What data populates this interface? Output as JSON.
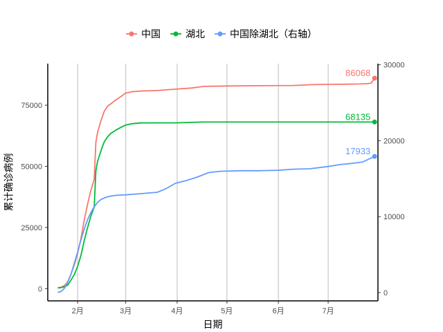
{
  "chart_data": {
    "type": "line",
    "xlabel": "日期",
    "ylabel": "累计确诊病例",
    "x_ticks": [
      {
        "date": "2020-02-01",
        "label": "2月"
      },
      {
        "date": "2020-03-01",
        "label": "3月"
      },
      {
        "date": "2020-04-01",
        "label": "4月"
      },
      {
        "date": "2020-05-01",
        "label": "5月"
      },
      {
        "date": "2020-06-01",
        "label": "6月"
      },
      {
        "date": "2020-07-01",
        "label": "7月"
      }
    ],
    "xlim": [
      "2020-01-14",
      "2020-07-31"
    ],
    "ylim_left": [
      -5000,
      92000
    ],
    "ylim_right": [
      -1100,
      30150
    ],
    "yticks_left": [
      0,
      25000,
      50000,
      75000
    ],
    "yticks_right": [
      0,
      10000,
      20000,
      30000
    ],
    "grid": "vertical",
    "legend_position": "top",
    "series": [
      {
        "name": "中国",
        "axis": "left",
        "color": "#F8766D",
        "end_label": "86068",
        "points": [
          [
            "2020-01-20",
            291
          ],
          [
            "2020-01-22",
            571
          ],
          [
            "2020-01-24",
            1287
          ],
          [
            "2020-01-26",
            2744
          ],
          [
            "2020-01-28",
            5974
          ],
          [
            "2020-01-30",
            9692
          ],
          [
            "2020-02-01",
            14380
          ],
          [
            "2020-02-03",
            20438
          ],
          [
            "2020-02-05",
            28018
          ],
          [
            "2020-02-07",
            34546
          ],
          [
            "2020-02-09",
            40171
          ],
          [
            "2020-02-11",
            44653
          ],
          [
            "2020-02-12",
            59804
          ],
          [
            "2020-02-13",
            63851
          ],
          [
            "2020-02-15",
            68500
          ],
          [
            "2020-02-17",
            72436
          ],
          [
            "2020-02-19",
            74576
          ],
          [
            "2020-02-21",
            75567
          ],
          [
            "2020-02-24",
            77150
          ],
          [
            "2020-02-27",
            78497
          ],
          [
            "2020-03-01",
            79968
          ],
          [
            "2020-03-05",
            80552
          ],
          [
            "2020-03-10",
            80778
          ],
          [
            "2020-03-20",
            81008
          ],
          [
            "2020-03-31",
            81554
          ],
          [
            "2020-04-10",
            82052
          ],
          [
            "2020-04-17",
            82692
          ],
          [
            "2020-05-01",
            82874
          ],
          [
            "2020-05-20",
            82965
          ],
          [
            "2020-06-10",
            83057
          ],
          [
            "2020-06-20",
            83378
          ],
          [
            "2020-07-01",
            83537
          ],
          [
            "2020-07-10",
            83585
          ],
          [
            "2020-07-20",
            83693
          ],
          [
            "2020-07-25",
            83830
          ],
          [
            "2020-07-27",
            84060
          ],
          [
            "2020-07-29",
            86068
          ]
        ]
      },
      {
        "name": "湖北",
        "axis": "left",
        "color": "#00BA38",
        "end_label": "68135",
        "points": [
          [
            "2020-01-20",
            270
          ],
          [
            "2020-01-22",
            444
          ],
          [
            "2020-01-24",
            729
          ],
          [
            "2020-01-26",
            1423
          ],
          [
            "2020-01-28",
            3554
          ],
          [
            "2020-01-30",
            5806
          ],
          [
            "2020-02-01",
            9074
          ],
          [
            "2020-02-03",
            13522
          ],
          [
            "2020-02-05",
            19665
          ],
          [
            "2020-02-07",
            24953
          ],
          [
            "2020-02-09",
            29631
          ],
          [
            "2020-02-11",
            33366
          ],
          [
            "2020-02-12",
            48206
          ],
          [
            "2020-02-13",
            51986
          ],
          [
            "2020-02-15",
            56249
          ],
          [
            "2020-02-17",
            59989
          ],
          [
            "2020-02-19",
            62031
          ],
          [
            "2020-02-21",
            63454
          ],
          [
            "2020-02-24",
            64786
          ],
          [
            "2020-02-27",
            65914
          ],
          [
            "2020-03-01",
            66907
          ],
          [
            "2020-03-05",
            67466
          ],
          [
            "2020-03-10",
            67760
          ],
          [
            "2020-03-20",
            67800
          ],
          [
            "2020-03-31",
            67801
          ],
          [
            "2020-04-17",
            68128
          ],
          [
            "2020-05-20",
            68134
          ],
          [
            "2020-07-29",
            68135
          ]
        ]
      },
      {
        "name": "中国除湖北（右轴）",
        "axis": "right",
        "color": "#619CFF",
        "end_label": "17933",
        "points": [
          [
            "2020-01-20",
            21
          ],
          [
            "2020-01-22",
            127
          ],
          [
            "2020-01-24",
            558
          ],
          [
            "2020-01-26",
            1321
          ],
          [
            "2020-01-28",
            2420
          ],
          [
            "2020-01-30",
            3886
          ],
          [
            "2020-02-01",
            5306
          ],
          [
            "2020-02-03",
            6916
          ],
          [
            "2020-02-05",
            8353
          ],
          [
            "2020-02-07",
            9593
          ],
          [
            "2020-02-09",
            10540
          ],
          [
            "2020-02-11",
            11287
          ],
          [
            "2020-02-13",
            11865
          ],
          [
            "2020-02-15",
            12250
          ],
          [
            "2020-02-18",
            12550
          ],
          [
            "2020-02-21",
            12700
          ],
          [
            "2020-02-25",
            12833
          ],
          [
            "2020-03-01",
            12865
          ],
          [
            "2020-03-10",
            13018
          ],
          [
            "2020-03-20",
            13208
          ],
          [
            "2020-03-25",
            13650
          ],
          [
            "2020-03-31",
            14400
          ],
          [
            "2020-04-07",
            14780
          ],
          [
            "2020-04-13",
            15200
          ],
          [
            "2020-04-20",
            15800
          ],
          [
            "2020-04-27",
            15970
          ],
          [
            "2020-05-10",
            16050
          ],
          [
            "2020-05-20",
            16050
          ],
          [
            "2020-06-01",
            16100
          ],
          [
            "2020-06-10",
            16250
          ],
          [
            "2020-06-20",
            16300
          ],
          [
            "2020-07-01",
            16600
          ],
          [
            "2020-07-08",
            16850
          ],
          [
            "2020-07-15",
            17000
          ],
          [
            "2020-07-22",
            17200
          ],
          [
            "2020-07-29",
            17933
          ]
        ]
      }
    ]
  }
}
